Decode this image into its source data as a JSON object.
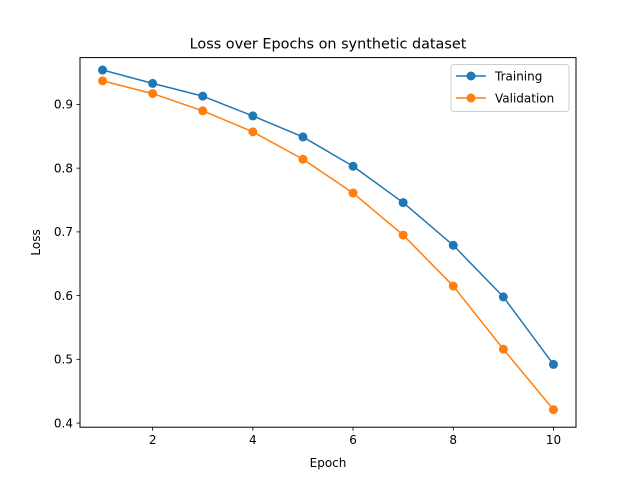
{
  "chart_data": {
    "type": "line",
    "title": "Loss over Epochs on synthetic dataset",
    "xlabel": "Epoch",
    "ylabel": "Loss",
    "x": [
      1,
      2,
      3,
      4,
      5,
      6,
      7,
      8,
      9,
      10
    ],
    "xlim": [
      0.55,
      10.45
    ],
    "ylim": [
      0.3935,
      0.9735
    ],
    "xticks": [
      2,
      4,
      6,
      8,
      10
    ],
    "yticks": [
      0.4,
      0.5,
      0.6,
      0.7,
      0.8,
      0.9
    ],
    "xtick_labels": [
      "2",
      "4",
      "6",
      "8",
      "10"
    ],
    "ytick_labels": [
      "0.4",
      "0.5",
      "0.6",
      "0.7",
      "0.8",
      "0.9"
    ],
    "grid": false,
    "legend_position": "upper right",
    "series": [
      {
        "name": "Training",
        "color": "#1f77b4",
        "values": [
          0.954,
          0.933,
          0.913,
          0.882,
          0.849,
          0.803,
          0.746,
          0.679,
          0.598,
          0.492
        ]
      },
      {
        "name": "Validation",
        "color": "#ff7f0e",
        "values": [
          0.937,
          0.917,
          0.89,
          0.857,
          0.814,
          0.761,
          0.695,
          0.615,
          0.516,
          0.421
        ]
      }
    ]
  }
}
